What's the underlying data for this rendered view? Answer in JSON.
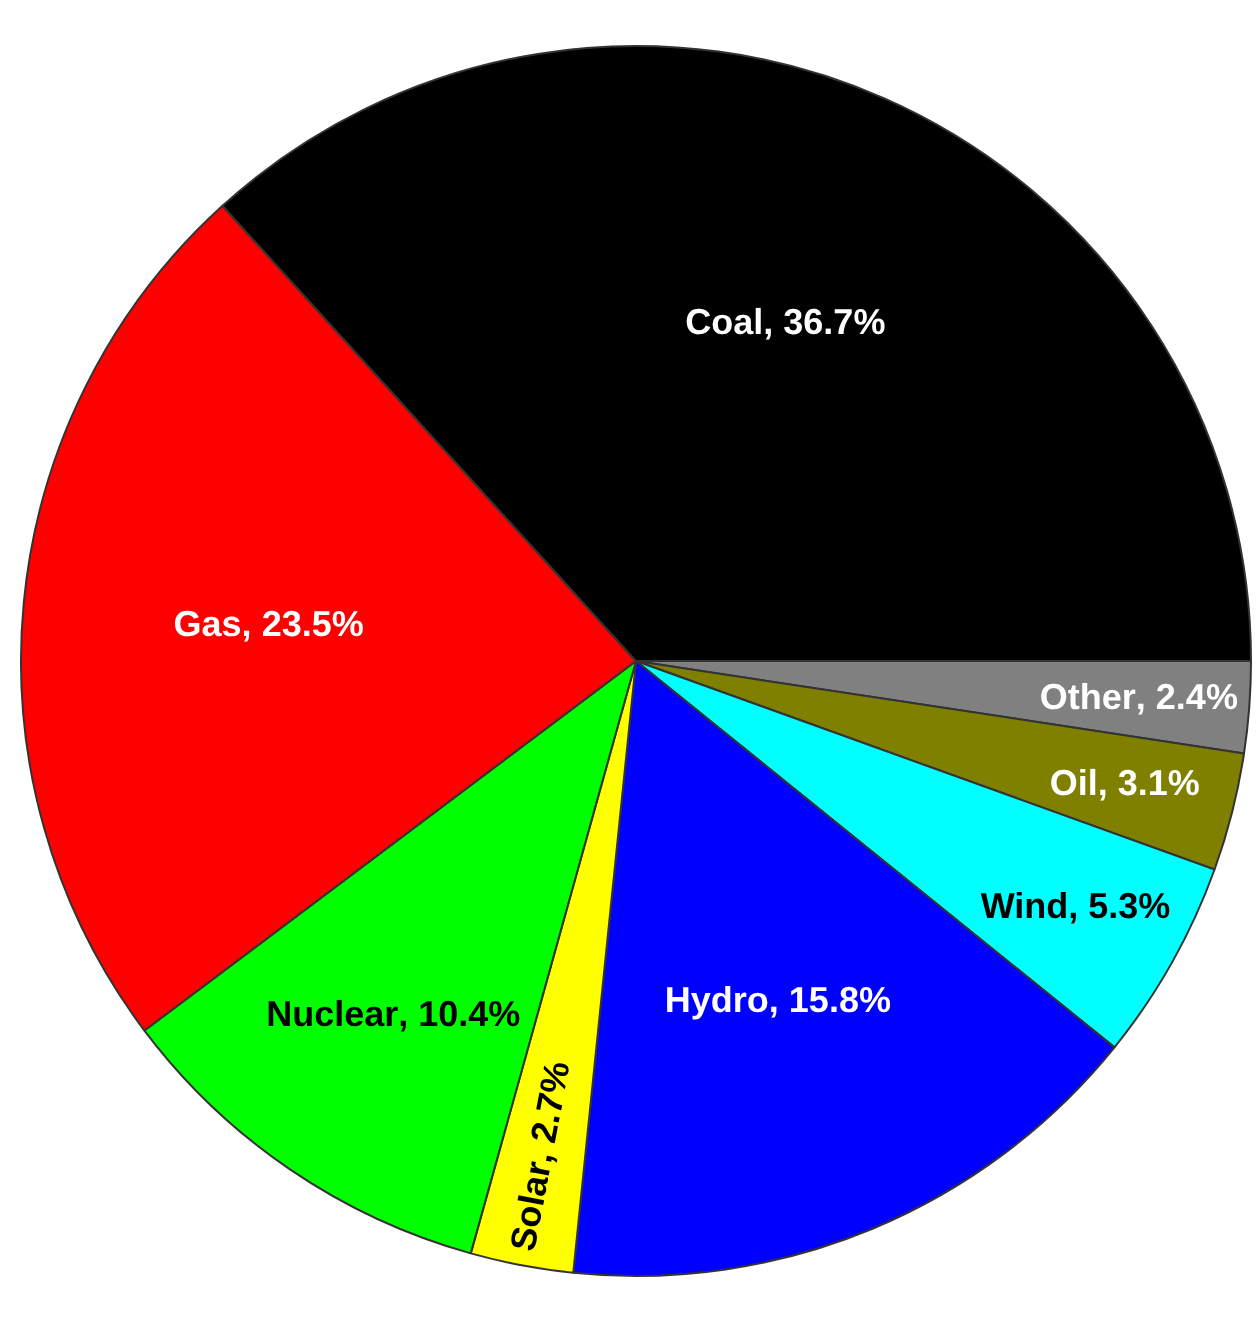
{
  "chart_data": {
    "type": "pie",
    "categories": [
      "Other",
      "Oil",
      "Wind",
      "Hydro",
      "Solar",
      "Nuclear",
      "Gas",
      "Coal"
    ],
    "values": [
      2.4,
      3.1,
      5.3,
      15.8,
      2.7,
      10.4,
      23.5,
      36.7
    ],
    "value_labels": [
      ", 2.4%",
      ", 3.1%",
      ", 5.3%",
      ", 15.8%",
      ", 2.7%",
      ", 10.4%",
      ", 23.5%",
      ", 36.7%"
    ],
    "colors": [
      "#808080",
      "#808000",
      "#00ffff",
      "#0000ff",
      "#ffff00",
      "#00ff00",
      "#ff0000",
      "#000000"
    ],
    "legend": false
  }
}
